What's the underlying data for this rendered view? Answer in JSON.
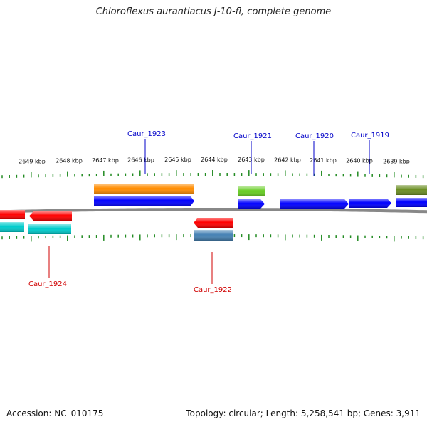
{
  "title": "Chloroflexus aurantiacus J-10-fl, complete genome",
  "footer": {
    "accession": "Accession: NC_010175",
    "summary": "Topology: circular; Length: 5,258,541 bp; Genes: 3,911"
  },
  "colors": {
    "tick": "#228b22",
    "backbone": "#888888",
    "label_forward": "#0000c8",
    "label_reverse": "#d00000"
  },
  "scale_labels": [
    "2649 kbp",
    "2648 kbp",
    "2647 kbp",
    "2646 kbp",
    "2645 kbp",
    "2644 kbp",
    "2643 kbp",
    "2642 kbp",
    "2641 kbp",
    "2640 kbp",
    "2639 kbp"
  ],
  "gene_labels": [
    {
      "text": "Caur_1923",
      "strand": "forward"
    },
    {
      "text": "Caur_1921",
      "strand": "forward"
    },
    {
      "text": "Caur_1920",
      "strand": "forward"
    },
    {
      "text": "Caur_1919",
      "strand": "forward"
    },
    {
      "text": "Caur_1924",
      "strand": "reverse"
    },
    {
      "text": "Caur_1922",
      "strand": "reverse"
    }
  ],
  "features": [
    {
      "color": "#ff8c00"
    },
    {
      "color": "#0000ff"
    },
    {
      "color": "#66cc22"
    },
    {
      "color": "#0000ff"
    },
    {
      "color": "#0000ff"
    },
    {
      "color": "#0000ff"
    },
    {
      "color": "#0000ff"
    },
    {
      "color": "#6b8e23"
    },
    {
      "color": "#ff0000"
    },
    {
      "color": "#ff0000"
    },
    {
      "color": "#00cccc"
    },
    {
      "color": "#00cccc"
    },
    {
      "color": "#ff0000"
    },
    {
      "color": "#4682b4"
    }
  ]
}
